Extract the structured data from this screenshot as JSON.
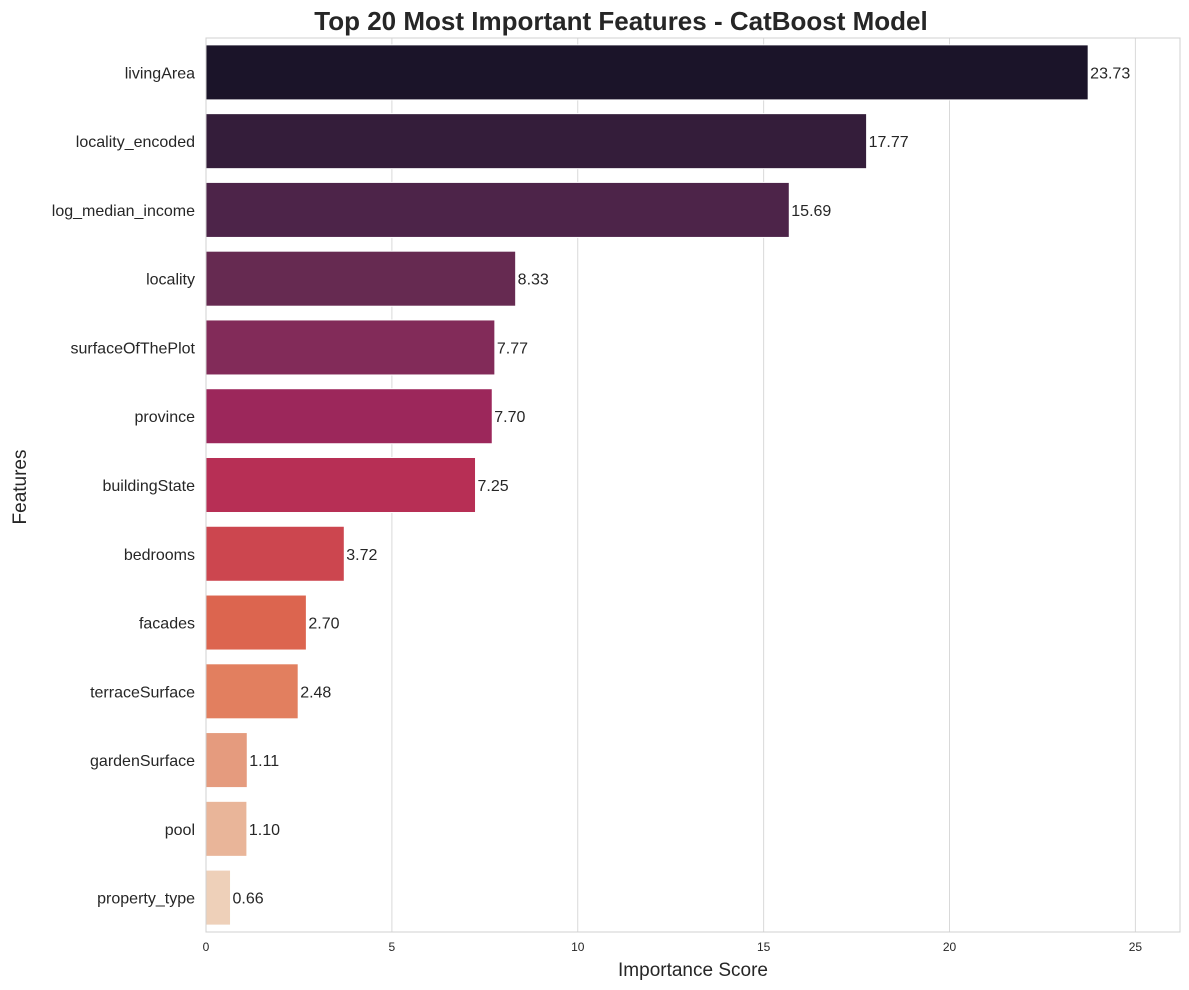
{
  "chart_data": {
    "type": "bar",
    "orientation": "horizontal",
    "title": "Top 20 Most Important Features - CatBoost Model",
    "xlabel": "Importance Score",
    "ylabel": "Features",
    "xlim": [
      0,
      26.2
    ],
    "xticks": [
      0,
      5,
      10,
      15,
      20,
      25
    ],
    "grid": "vertical",
    "categories": [
      "livingArea",
      "locality_encoded",
      "log_median_income",
      "locality",
      "surfaceOfThePlot",
      "province",
      "buildingState",
      "bedrooms",
      "facades",
      "terraceSurface",
      "gardenSurface",
      "pool",
      "property_type"
    ],
    "values": [
      23.73,
      17.77,
      15.69,
      8.33,
      7.77,
      7.7,
      7.25,
      3.72,
      2.7,
      2.48,
      1.11,
      1.1,
      0.66
    ],
    "value_labels": [
      "23.73",
      "17.77",
      "15.69",
      "8.33",
      "7.77",
      "7.70",
      "7.25",
      "3.72",
      "2.70",
      "2.48",
      "1.11",
      "1.10",
      "0.66"
    ],
    "colors": [
      "#1b1429",
      "#341d3a",
      "#4d2449",
      "#662a51",
      "#822b59",
      "#9c275b",
      "#b72f55",
      "#cc464f",
      "#dc654f",
      "#e27f5f",
      "#e59b7e",
      "#e9b599",
      "#eed0b9"
    ]
  }
}
